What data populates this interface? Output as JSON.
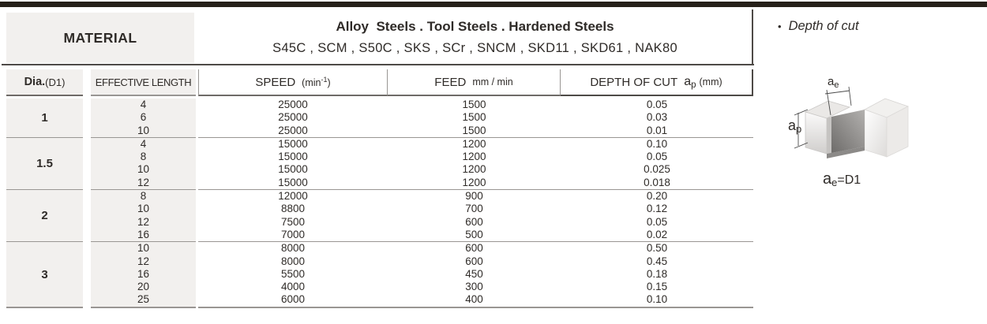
{
  "title_block": {
    "material_label": "MATERIAL",
    "steels_title": "Alloy  Steels . Tool Steels . Hardened Steels",
    "steels_grades": "S45C , SCM , S50C , SKS , SCr , SNCM , SKD11 , SKD61 , NAK80"
  },
  "column_headers": {
    "dia_label": "Dia.",
    "dia_sub": "(D1)",
    "effective_length": "EFFECTIVE LENGTH",
    "speed_label": "SPEED",
    "speed_unit_pre": "(min",
    "speed_unit_sup": "-1",
    "speed_unit_post": ")",
    "feed_label": "FEED",
    "feed_unit": "mm / min",
    "depth_label": "DEPTH OF CUT",
    "depth_symbol_base": "a",
    "depth_symbol_sub": "p",
    "depth_unit": "(mm)"
  },
  "table": {
    "groups": [
      {
        "dia": "1",
        "rows": [
          {
            "length": "4",
            "speed": "25000",
            "feed": "1500",
            "depth": "0.05"
          },
          {
            "length": "6",
            "speed": "25000",
            "feed": "1500",
            "depth": "0.03"
          },
          {
            "length": "10",
            "speed": "25000",
            "feed": "1500",
            "depth": "0.01"
          }
        ]
      },
      {
        "dia": "1.5",
        "rows": [
          {
            "length": "4",
            "speed": "15000",
            "feed": "1200",
            "depth": "0.10"
          },
          {
            "length": "8",
            "speed": "15000",
            "feed": "1200",
            "depth": "0.05"
          },
          {
            "length": "10",
            "speed": "15000",
            "feed": "1200",
            "depth": "0.025"
          },
          {
            "length": "12",
            "speed": "15000",
            "feed": "1200",
            "depth": "0.018"
          }
        ]
      },
      {
        "dia": "2",
        "rows": [
          {
            "length": "8",
            "speed": "12000",
            "feed": "900",
            "depth": "0.20"
          },
          {
            "length": "10",
            "speed": "8800",
            "feed": "700",
            "depth": "0.12"
          },
          {
            "length": "12",
            "speed": "7500",
            "feed": "600",
            "depth": "0.05"
          },
          {
            "length": "16",
            "speed": "7000",
            "feed": "500",
            "depth": "0.02"
          }
        ]
      },
      {
        "dia": "3",
        "rows": [
          {
            "length": "10",
            "speed": "8000",
            "feed": "600",
            "depth": "0.50"
          },
          {
            "length": "12",
            "speed": "8000",
            "feed": "600",
            "depth": "0.45"
          },
          {
            "length": "16",
            "speed": "5500",
            "feed": "450",
            "depth": "0.18"
          },
          {
            "length": "20",
            "speed": "4000",
            "feed": "300",
            "depth": "0.15"
          },
          {
            "length": "25",
            "speed": "6000",
            "feed": "400",
            "depth": "0.10"
          }
        ]
      }
    ]
  },
  "side_panel": {
    "bullet": "•",
    "caption": "Depth of cut",
    "ae_base": "a",
    "ae_sub": "e",
    "ap_base": "a",
    "ap_sub": "p",
    "equation_base": "a",
    "equation_sub": "e",
    "equation_rest": "=D1"
  },
  "colors": {
    "top_bar": "#262019",
    "cell_gray": "#f2f0ee",
    "rule_dark": "#4e4a47",
    "rule_gray": "#999693",
    "text": "#2f2b28"
  }
}
